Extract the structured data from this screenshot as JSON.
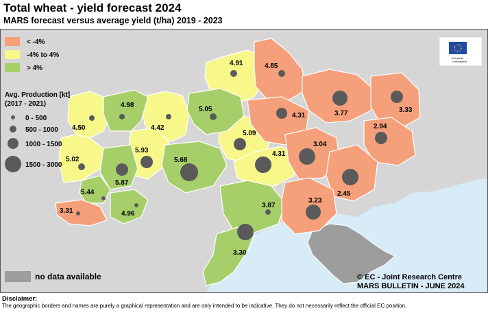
{
  "title": "Total wheat - yield forecast 2024",
  "subtitle": "MARS forecast versus average yield (t/ha) 2019 - 2023",
  "colors": {
    "low": "#f5a07a",
    "mid": "#f7f78a",
    "high": "#a6cf6a",
    "nodata": "#9d9d9d",
    "sea": "#d8ecf8",
    "land": "#d6d6d6",
    "dot": "#5a5a5a"
  },
  "legend": {
    "classes": [
      {
        "label": "< -4%",
        "color": "#f5a07a"
      },
      {
        "label": "-4% to 4%",
        "color": "#f7f78a"
      },
      {
        "label": "> 4%",
        "color": "#a6cf6a"
      }
    ],
    "production_title_1": "Avg. Production [kt]",
    "production_title_2": "(2017 - 2021)",
    "production_classes": [
      "0 - 500",
      "500 - 1000",
      "1000 - 1500",
      "1500 - 3000"
    ],
    "nodata_label": "no data available"
  },
  "logo": {
    "line1": "European",
    "line2": "Commission"
  },
  "regions": [
    {
      "value": "4.91"
    },
    {
      "value": "4.85"
    },
    {
      "value": "4.98"
    },
    {
      "value": "4.50"
    },
    {
      "value": "4.42"
    },
    {
      "value": "5.05"
    },
    {
      "value": "4.31"
    },
    {
      "value": "3.77"
    },
    {
      "value": "3.33"
    },
    {
      "value": "2.94"
    },
    {
      "value": "5.09"
    },
    {
      "value": "5.93"
    },
    {
      "value": "5.02"
    },
    {
      "value": "5.87"
    },
    {
      "value": "5.68"
    },
    {
      "value": "4.31"
    },
    {
      "value": "3.04"
    },
    {
      "value": "5.44"
    },
    {
      "value": "2.45"
    },
    {
      "value": "4.96"
    },
    {
      "value": "3.31"
    },
    {
      "value": "3.87"
    },
    {
      "value": "3.23"
    },
    {
      "value": "3.30"
    }
  ],
  "credit_line1": "© EC - Joint Research Centre",
  "credit_line2": "MARS BULLETIN - JUNE 2024",
  "disclaimer_head": "Disclaimer:",
  "disclaimer_text": "The geographic borders and names are purely a graphical representation and are only intended to be indicative. They do not necessarily reflect the official EC position."
}
